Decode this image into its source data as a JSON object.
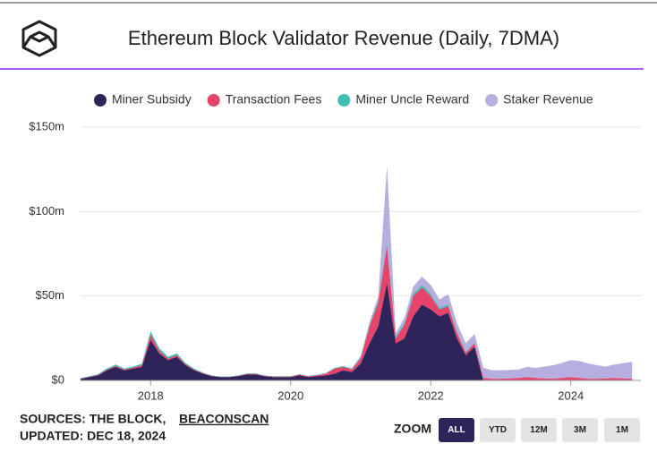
{
  "chart_data": {
    "type": "area",
    "title": "Ethereum Block Validator Revenue (Daily, 7DMA)",
    "x": [
      2017.0,
      2017.125,
      2017.25,
      2017.375,
      2017.5,
      2017.625,
      2017.75,
      2017.875,
      2018.0,
      2018.125,
      2018.25,
      2018.375,
      2018.5,
      2018.625,
      2018.75,
      2018.875,
      2019.0,
      2019.125,
      2019.25,
      2019.375,
      2019.5,
      2019.625,
      2019.75,
      2019.875,
      2020.0,
      2020.125,
      2020.25,
      2020.375,
      2020.5,
      2020.625,
      2020.75,
      2020.875,
      2021.0,
      2021.125,
      2021.25,
      2021.375,
      2021.5,
      2021.625,
      2021.75,
      2021.875,
      2022.0,
      2022.125,
      2022.25,
      2022.375,
      2022.5,
      2022.625,
      2022.75,
      2022.875,
      2023.0,
      2023.125,
      2023.25,
      2023.375,
      2023.5,
      2023.625,
      2023.75,
      2023.875,
      2024.0,
      2024.125,
      2024.25,
      2024.375,
      2024.5,
      2024.625,
      2024.75,
      2024.875
    ],
    "series": [
      {
        "name": "Miner Subsidy",
        "color": "#2e2459",
        "values": [
          1,
          2,
          3,
          6,
          8,
          6,
          7,
          8,
          24,
          16,
          12,
          14,
          9,
          6,
          4,
          2.5,
          2,
          2,
          2.5,
          3.5,
          3.5,
          2.5,
          2,
          2,
          2,
          3,
          2,
          2.5,
          3,
          4,
          6,
          5,
          10,
          22,
          32,
          58,
          22,
          25,
          38,
          45,
          42,
          38,
          40,
          25,
          15,
          20,
          0,
          0,
          0,
          0,
          0,
          0,
          0,
          0,
          0,
          0,
          0,
          0,
          0,
          0,
          0,
          0,
          0,
          0
        ]
      },
      {
        "name": "Transaction Fees",
        "color": "#e8436a",
        "values": [
          0.2,
          0.2,
          0.3,
          0.5,
          0.6,
          0.5,
          0.6,
          1,
          3,
          1.5,
          1,
          1,
          0.6,
          0.4,
          0.3,
          0.2,
          0.2,
          0.2,
          0.3,
          0.4,
          0.4,
          0.3,
          0.3,
          0.3,
          0.3,
          0.5,
          0.5,
          0.6,
          1,
          3,
          2,
          1.5,
          3,
          10,
          14,
          22,
          3,
          8,
          12,
          10,
          8,
          4,
          4,
          3,
          1.5,
          2,
          1.5,
          1,
          1,
          1.2,
          1.5,
          2,
          1.5,
          1.2,
          1,
          1.5,
          2,
          1.5,
          1,
          1,
          1.2,
          1.5,
          1.2,
          1
        ]
      },
      {
        "name": "Miner Uncle Reward",
        "color": "#3fbfb0",
        "values": [
          0.2,
          0.3,
          0.4,
          0.6,
          0.8,
          0.6,
          0.7,
          0.8,
          2,
          1.5,
          1,
          1,
          0.7,
          0.5,
          0.3,
          0.2,
          0.2,
          0.2,
          0.2,
          0.3,
          0.3,
          0.2,
          0.2,
          0.2,
          0.2,
          0.2,
          0.2,
          0.2,
          0.3,
          0.4,
          0.5,
          0.4,
          0.6,
          1,
          1.5,
          2,
          1,
          1,
          1.5,
          1.5,
          1.5,
          1,
          1,
          0.8,
          0.5,
          0.5,
          0,
          0,
          0,
          0,
          0,
          0,
          0,
          0,
          0,
          0,
          0,
          0,
          0,
          0,
          0,
          0,
          0,
          0
        ]
      },
      {
        "name": "Staker Revenue",
        "color": "#b7aee0",
        "values": [
          0,
          0,
          0,
          0,
          0,
          0,
          0,
          0,
          0,
          0,
          0,
          0,
          0,
          0,
          0,
          0,
          0,
          0,
          0,
          0,
          0,
          0,
          0,
          0,
          0,
          0,
          0,
          0,
          0,
          0,
          0,
          0.5,
          1,
          1.5,
          2,
          45,
          2,
          3,
          4,
          5,
          5,
          5,
          6,
          5,
          5,
          5,
          6,
          5,
          5,
          5,
          5,
          6,
          6,
          7,
          8,
          9,
          10,
          10,
          9,
          8,
          7,
          8,
          9,
          10
        ]
      }
    ],
    "xlim": [
      2017,
      2025
    ],
    "xticks": [
      2018,
      2020,
      2022,
      2024
    ],
    "ylim": [
      0,
      150
    ],
    "yticks": [
      {
        "value": 0,
        "label": "$0"
      },
      {
        "value": 50,
        "label": "$50m"
      },
      {
        "value": 100,
        "label": "$100m"
      },
      {
        "value": 150,
        "label": "$150m"
      }
    ],
    "grid": true,
    "stacked": true,
    "legend": "top"
  },
  "footer": {
    "sources": "SOURCES: THE BLOCK,",
    "source_link": "BEACONSCAN",
    "updated": "UPDATED: DEC 18, 2024"
  },
  "zoom": {
    "label": "ZOOM",
    "buttons": [
      "ALL",
      "YTD",
      "12M",
      "3M",
      "1M"
    ],
    "active": 0
  }
}
